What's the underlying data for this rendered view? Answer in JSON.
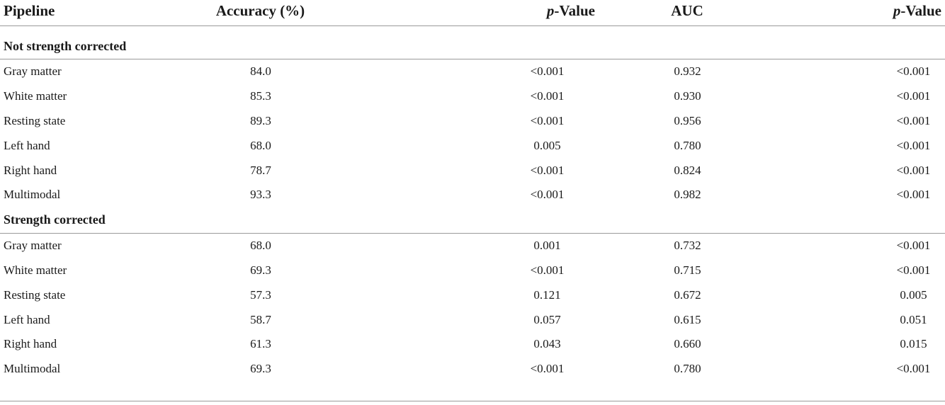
{
  "header": {
    "pipeline": "Pipeline",
    "accuracy": "Accuracy (%)",
    "p_label_italic": "p",
    "p_label_rest": "-Value",
    "auc": "AUC",
    "p2_label_italic": "p",
    "p2_label_rest": "-Value"
  },
  "sections": [
    {
      "title": "Not strength corrected",
      "rows": [
        {
          "pipeline": "Gray matter",
          "accuracy": "84.0",
          "p_acc": "<0.001",
          "auc": "0.932",
          "p_auc": "<0.001"
        },
        {
          "pipeline": "White matter",
          "accuracy": "85.3",
          "p_acc": "<0.001",
          "auc": "0.930",
          "p_auc": "<0.001"
        },
        {
          "pipeline": "Resting state",
          "accuracy": "89.3",
          "p_acc": "<0.001",
          "auc": "0.956",
          "p_auc": "<0.001"
        },
        {
          "pipeline": "Left hand",
          "accuracy": "68.0",
          "p_acc": "0.005",
          "auc": "0.780",
          "p_auc": "<0.001"
        },
        {
          "pipeline": "Right hand",
          "accuracy": "78.7",
          "p_acc": "<0.001",
          "auc": "0.824",
          "p_auc": "<0.001"
        },
        {
          "pipeline": "Multimodal",
          "accuracy": "93.3",
          "p_acc": "<0.001",
          "auc": "0.982",
          "p_auc": "<0.001"
        }
      ]
    },
    {
      "title": "Strength corrected",
      "rows": [
        {
          "pipeline": "Gray matter",
          "accuracy": "68.0",
          "p_acc": "0.001",
          "auc": "0.732",
          "p_auc": "<0.001"
        },
        {
          "pipeline": "White matter",
          "accuracy": "69.3",
          "p_acc": "<0.001",
          "auc": "0.715",
          "p_auc": "<0.001"
        },
        {
          "pipeline": "Resting state",
          "accuracy": "57.3",
          "p_acc": "0.121",
          "auc": "0.672",
          "p_auc": "0.005"
        },
        {
          "pipeline": "Left hand",
          "accuracy": "58.7",
          "p_acc": "0.057",
          "auc": "0.615",
          "p_auc": "0.051"
        },
        {
          "pipeline": "Right hand",
          "accuracy": "61.3",
          "p_acc": "0.043",
          "auc": "0.660",
          "p_auc": "0.015"
        },
        {
          "pipeline": "Multimodal",
          "accuracy": "69.3",
          "p_acc": "<0.001",
          "auc": "0.780",
          "p_auc": "<0.001"
        }
      ]
    }
  ]
}
